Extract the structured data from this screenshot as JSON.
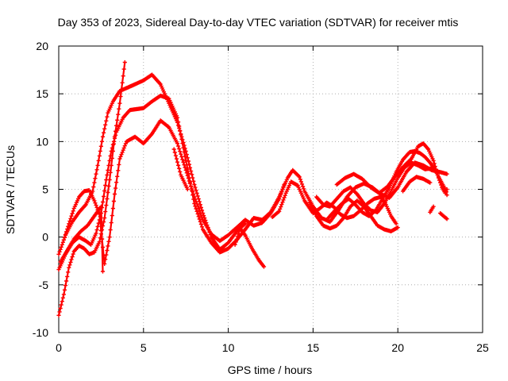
{
  "chart_data": {
    "type": "scatter",
    "title": "Day 353 of 2023, Sidereal Day-to-day VTEC variation (SDTVAR) for receiver mtis",
    "xlabel": "GPS time / hours",
    "ylabel": "SDTVAR / TECUs",
    "xlim": [
      0,
      25
    ],
    "ylim": [
      -10,
      20
    ],
    "xticks": [
      0,
      5,
      10,
      15,
      20,
      25
    ],
    "yticks": [
      -10,
      -5,
      0,
      5,
      10,
      15,
      20
    ],
    "grid": true,
    "marker": "+",
    "color": "#ff0000",
    "series": [
      {
        "name": "track-1",
        "points": [
          [
            0,
            -8.2
          ],
          [
            0.3,
            -6
          ],
          [
            0.6,
            -3.2
          ],
          [
            0.9,
            -1.5
          ],
          [
            1.2,
            -0.9
          ],
          [
            1.5,
            -1.2
          ],
          [
            1.8,
            -1.8
          ],
          [
            2.1,
            -1.6
          ],
          [
            2.4,
            -0.5
          ],
          [
            2.7,
            2
          ],
          [
            3,
            6
          ],
          [
            3.3,
            10.5
          ],
          [
            3.6,
            14
          ],
          [
            3.9,
            18.3
          ]
        ]
      },
      {
        "name": "track-2",
        "points": [
          [
            0,
            -1.8
          ],
          [
            0.4,
            0.2
          ],
          [
            0.8,
            1.6
          ],
          [
            1.2,
            2.6
          ],
          [
            1.6,
            3.4
          ],
          [
            2,
            4.8
          ],
          [
            2.3,
            7.5
          ],
          [
            2.6,
            10.5
          ],
          [
            2.9,
            13
          ],
          [
            3.2,
            14.2
          ],
          [
            3.6,
            15.3
          ],
          [
            4,
            15.6
          ],
          [
            4.5,
            16
          ],
          [
            5,
            16.4
          ],
          [
            5.5,
            17
          ],
          [
            6,
            16
          ],
          [
            6.5,
            14
          ],
          [
            7,
            12
          ],
          [
            7.5,
            9
          ],
          [
            8,
            5.5
          ],
          [
            8.5,
            2.5
          ],
          [
            9,
            0
          ],
          [
            9.5,
            -1.3
          ],
          [
            10,
            -0.6
          ],
          [
            10.5,
            0.6
          ],
          [
            11,
            1.4
          ]
        ]
      },
      {
        "name": "track-3",
        "points": [
          [
            0,
            -3.4
          ],
          [
            0.4,
            -1.8
          ],
          [
            0.8,
            -0.6
          ],
          [
            1.2,
            0
          ],
          [
            1.6,
            -0.4
          ],
          [
            1.9,
            -0.8
          ],
          [
            2.2,
            0.4
          ],
          [
            2.5,
            2.5
          ],
          [
            2.8,
            6
          ],
          [
            3.1,
            9
          ],
          [
            3.4,
            11
          ],
          [
            3.8,
            12.5
          ],
          [
            4.2,
            13.3
          ],
          [
            4.6,
            13.4
          ],
          [
            5,
            13.5
          ],
          [
            5.5,
            14.2
          ],
          [
            6,
            14.8
          ],
          [
            6.5,
            14.5
          ],
          [
            7,
            12.5
          ],
          [
            7.5,
            8
          ],
          [
            8,
            3.5
          ],
          [
            8.5,
            0.8
          ],
          [
            9,
            -0.6
          ],
          [
            9.5,
            -1.6
          ],
          [
            10,
            -1.2
          ],
          [
            10.5,
            -0.3
          ],
          [
            11,
            0.8
          ],
          [
            11.5,
            2
          ],
          [
            12,
            1.8
          ],
          [
            12.5,
            2.6
          ],
          [
            13,
            4.2
          ],
          [
            13.5,
            6.2
          ],
          [
            13.8,
            7
          ],
          [
            14.2,
            6.3
          ],
          [
            14.5,
            4.8
          ],
          [
            15,
            3.2
          ],
          [
            15.5,
            2
          ],
          [
            16,
            1.6
          ],
          [
            16.5,
            2.8
          ],
          [
            17,
            4.2
          ],
          [
            17.5,
            5.2
          ],
          [
            18,
            5.6
          ],
          [
            18.5,
            5.2
          ],
          [
            19,
            4.5
          ],
          [
            19.5,
            4.1
          ],
          [
            20,
            5.2
          ],
          [
            20.5,
            6.8
          ],
          [
            21,
            7.8
          ],
          [
            21.5,
            7.5
          ],
          [
            22,
            7
          ],
          [
            22.5,
            6.8
          ],
          [
            22.9,
            6.6
          ]
        ]
      },
      {
        "name": "track-4",
        "points": [
          [
            0.3,
            -0.3
          ],
          [
            0.6,
            1.4
          ],
          [
            0.9,
            3
          ],
          [
            1.2,
            4.2
          ],
          [
            1.5,
            4.8
          ],
          [
            1.8,
            4.9
          ],
          [
            2.1,
            3.8
          ],
          [
            2.4,
            2.4
          ],
          [
            2.7,
            -2.8
          ],
          [
            3,
            0
          ],
          [
            3.3,
            4.5
          ],
          [
            3.6,
            8.2
          ],
          [
            4,
            10
          ],
          [
            4.5,
            10.5
          ],
          [
            5,
            9.8
          ],
          [
            5.5,
            10.8
          ],
          [
            6,
            12.2
          ],
          [
            6.5,
            11.5
          ],
          [
            7,
            9.8
          ],
          [
            7.5,
            7
          ],
          [
            8,
            4.2
          ],
          [
            8.5,
            1.8
          ],
          [
            9,
            0.3
          ],
          [
            9.5,
            -0.4
          ],
          [
            10,
            0.2
          ],
          [
            10.5,
            1
          ],
          [
            11,
            1.8
          ],
          [
            11.5,
            1.2
          ],
          [
            12,
            1.5
          ],
          [
            12.5,
            2.5
          ],
          [
            13,
            4
          ],
          [
            13.3,
            5.5
          ]
        ]
      },
      {
        "name": "track-5",
        "points": [
          [
            0.1,
            -2.6
          ],
          [
            0.5,
            -1.4
          ],
          [
            0.9,
            -0.2
          ],
          [
            1.3,
            0.6
          ],
          [
            1.7,
            1.2
          ],
          [
            2.1,
            2.2
          ],
          [
            2.5,
            3.2
          ],
          [
            2.6,
            -3.6
          ]
        ]
      },
      {
        "name": "track-6",
        "points": [
          [
            6.8,
            9.2
          ],
          [
            7.2,
            6.5
          ],
          [
            7.6,
            5
          ]
        ]
      },
      {
        "name": "track-7",
        "points": [
          [
            10.4,
            -0.8
          ],
          [
            10.7,
            0.9
          ],
          [
            11,
            0.2
          ],
          [
            11.4,
            -1.2
          ],
          [
            11.8,
            -2.4
          ],
          [
            12.1,
            -3.1
          ]
        ]
      },
      {
        "name": "track-8",
        "points": [
          [
            12.6,
            2.1
          ],
          [
            13,
            2.7
          ],
          [
            13.4,
            4.6
          ],
          [
            13.7,
            5.8
          ],
          [
            14.1,
            5.4
          ],
          [
            14.5,
            3.8
          ],
          [
            15,
            2.5
          ],
          [
            15.4,
            3
          ],
          [
            15.8,
            3.6
          ],
          [
            16.2,
            3.2
          ],
          [
            16.6,
            2.4
          ],
          [
            17,
            2
          ],
          [
            17.4,
            2.2
          ],
          [
            17.8,
            2.8
          ],
          [
            18.2,
            3.5
          ],
          [
            18.6,
            4
          ],
          [
            19,
            4.2
          ],
          [
            19.3,
            3.4
          ],
          [
            19.6,
            2.2
          ],
          [
            19.9,
            1.4
          ]
        ]
      },
      {
        "name": "track-9",
        "points": [
          [
            14.8,
            3.6
          ],
          [
            15.2,
            2.2
          ],
          [
            15.6,
            1.2
          ],
          [
            16,
            0.9
          ],
          [
            16.4,
            1.2
          ],
          [
            16.8,
            2
          ],
          [
            17.2,
            3.2
          ],
          [
            17.6,
            3.8
          ],
          [
            18,
            3.2
          ],
          [
            18.4,
            2.2
          ],
          [
            18.8,
            1.2
          ],
          [
            19.2,
            0.8
          ],
          [
            19.6,
            0.6
          ],
          [
            20,
            1
          ]
        ]
      },
      {
        "name": "track-10",
        "points": [
          [
            15.2,
            4.2
          ],
          [
            15.6,
            3.4
          ],
          [
            16,
            3.2
          ],
          [
            16.4,
            4
          ],
          [
            16.8,
            4.8
          ],
          [
            17.2,
            5.2
          ],
          [
            17.6,
            4.5
          ],
          [
            18,
            3.5
          ],
          [
            18.4,
            2.8
          ],
          [
            18.8,
            2.6
          ],
          [
            19.2,
            3.5
          ],
          [
            19.6,
            4.8
          ],
          [
            20,
            6.2
          ],
          [
            20.4,
            7.3
          ],
          [
            20.8,
            7.8
          ],
          [
            21.2,
            7.5
          ],
          [
            21.6,
            7.1
          ],
          [
            22,
            7.2
          ]
        ]
      },
      {
        "name": "track-11",
        "points": [
          [
            15.9,
            2
          ],
          [
            16.3,
            2.8
          ],
          [
            16.7,
            3.5
          ],
          [
            17.1,
            4
          ],
          [
            17.5,
            3.4
          ],
          [
            17.9,
            2.6
          ],
          [
            18.3,
            2.2
          ],
          [
            18.7,
            2.8
          ],
          [
            19.1,
            4
          ],
          [
            19.5,
            5.2
          ],
          [
            19.9,
            6.8
          ],
          [
            20.3,
            8.1
          ],
          [
            20.7,
            8.9
          ],
          [
            21,
            9
          ],
          [
            21.3,
            8.8
          ],
          [
            21.6,
            8.4
          ],
          [
            21.9,
            7.8
          ],
          [
            22.2,
            7
          ],
          [
            22.5,
            6
          ],
          [
            22.8,
            5
          ],
          [
            22.9,
            4.4
          ]
        ]
      },
      {
        "name": "track-12",
        "points": [
          [
            16.4,
            5.5
          ],
          [
            16.9,
            6.2
          ],
          [
            17.4,
            6.6
          ],
          [
            17.9,
            6.1
          ],
          [
            18.4,
            5.2
          ],
          [
            18.9,
            4.6
          ],
          [
            19.4,
            5.3
          ],
          [
            19.9,
            6.5
          ],
          [
            20.4,
            7.5
          ],
          [
            20.8,
            8.2
          ],
          [
            21.2,
            9.5
          ],
          [
            21.5,
            9.8
          ],
          [
            21.8,
            9.2
          ],
          [
            22.1,
            8
          ],
          [
            22.4,
            6.2
          ],
          [
            22.6,
            5.2
          ],
          [
            22.8,
            4.6
          ],
          [
            22.9,
            5
          ]
        ]
      },
      {
        "name": "track-13",
        "points": [
          [
            20.3,
            4.8
          ],
          [
            20.7,
            5.8
          ],
          [
            21.1,
            6.3
          ],
          [
            21.5,
            6.1
          ],
          [
            21.9,
            5.7
          ]
        ]
      },
      {
        "name": "track-14",
        "points": [
          [
            21.9,
            2.6
          ],
          [
            22.1,
            3.2
          ]
        ]
      },
      {
        "name": "track-15",
        "points": [
          [
            22.5,
            2.5
          ],
          [
            22.9,
            1.9
          ]
        ]
      }
    ]
  }
}
